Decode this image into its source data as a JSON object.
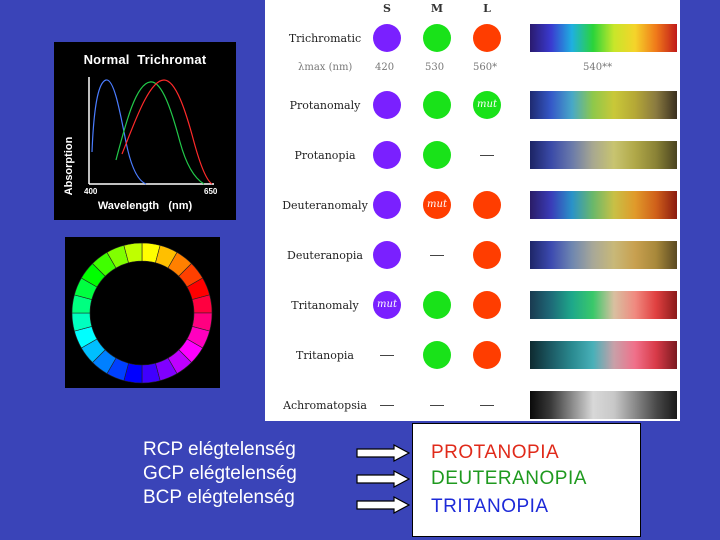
{
  "chart": {
    "title": "Normal  Trichromat",
    "ylabel": "Absorption",
    "xlabel": "Wavelength   (nm)",
    "tick_min": "400",
    "tick_max": "650",
    "curve_colors": [
      "#4a7cff",
      "#22c94a",
      "#ff2a2a"
    ]
  },
  "table": {
    "headers": [
      "S",
      "M",
      "L"
    ],
    "lambda_label": "λmax (nm)",
    "lambda_values": [
      "420",
      "530",
      "560*",
      "540**"
    ],
    "rows": [
      {
        "label": "Trichromatic",
        "s": "violet",
        "m": "green",
        "l": "red",
        "spectrum": "full"
      },
      {
        "label": "Protanomaly",
        "s": "violet",
        "m": "green",
        "l": "mut-green",
        "spectrum": "protanomaly"
      },
      {
        "label": "Protanopia",
        "s": "violet",
        "m": "green",
        "l": "none",
        "spectrum": "protanopia"
      },
      {
        "label": "Deuteranomaly",
        "s": "violet",
        "m": "mut-red",
        "l": "red",
        "spectrum": "deuteranomaly"
      },
      {
        "label": "Deuteranopia",
        "s": "violet",
        "m": "none",
        "l": "red",
        "spectrum": "deuteranopia"
      },
      {
        "label": "Tritanomaly",
        "s": "mut-violet",
        "m": "green",
        "l": "red",
        "spectrum": "tritanomaly"
      },
      {
        "label": "Tritanopia",
        "s": "none",
        "m": "green",
        "l": "red",
        "spectrum": "tritanopia"
      },
      {
        "label": "Achromatopsia",
        "s": "none",
        "m": "none",
        "l": "none",
        "spectrum": "achromatopsia"
      }
    ],
    "mut_label": "mut"
  },
  "deficits": [
    "RCP elégtelenség",
    "GCP elégtelenség",
    "BCP elégtelenség"
  ],
  "answers": [
    {
      "text": "PROTANOPIA",
      "color": "#e02a1a"
    },
    {
      "text": "DEUTERANOPIA",
      "color": "#1f9a1f"
    },
    {
      "text": "TRITANOPIA",
      "color": "#1d2ad8"
    }
  ],
  "colors": {
    "background": "#3a44b8",
    "violet": "#7a20ff",
    "green": "#19e219",
    "red": "#ff3d00"
  }
}
